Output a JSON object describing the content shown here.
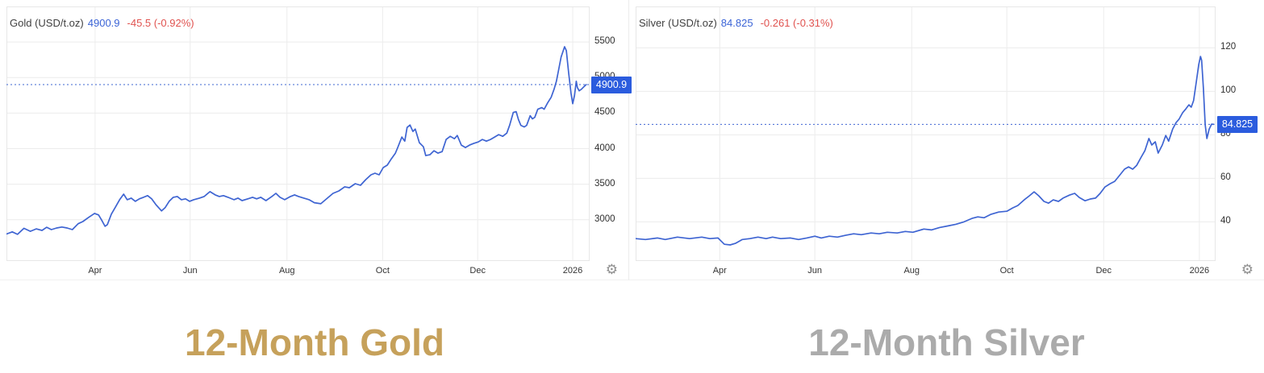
{
  "colors": {
    "line": "#3e64d2",
    "badge": "#2b5cde",
    "grid": "#ececec",
    "plot_border": "#e7e7e7",
    "value_text": "#3a63d6",
    "change_text": "#e0524f",
    "gold_title": "#c6a15b",
    "silver_title": "#ababab"
  },
  "panels": [
    {
      "id": "gold",
      "instrument": "Gold (USD/t.oz)",
      "price": "4900.9",
      "change": "-45.5 (-0.92%)",
      "badge": "4900.9",
      "gear_icon": "settings-gear"
    },
    {
      "id": "silver",
      "instrument": "Silver (USD/t.oz)",
      "price": "84.825",
      "change": "-0.261 (-0.31%)",
      "badge": "84.825",
      "gear_icon": "settings-gear"
    }
  ],
  "captions": {
    "gold": "12-Month Gold",
    "silver": "12-Month Silver"
  },
  "chart_data": [
    {
      "id": "gold",
      "type": "line",
      "title": "Gold (USD/t.oz)",
      "last_price": 4900.9,
      "change": -45.5,
      "change_pct": -0.92,
      "ylim": [
        2420,
        6000
      ],
      "grid": true,
      "legend_position": "top-left",
      "yticks": [
        {
          "v": 3000,
          "label": "3000"
        },
        {
          "v": 3500,
          "label": "3500"
        },
        {
          "v": 4000,
          "label": "4000"
        },
        {
          "v": 4500,
          "label": "4500"
        },
        {
          "v": 5000,
          "label": "5000"
        },
        {
          "v": 5500,
          "label": "5500"
        }
      ],
      "xticks": [
        {
          "f": 0.152,
          "label": "Apr"
        },
        {
          "f": 0.315,
          "label": "Jun"
        },
        {
          "f": 0.481,
          "label": "Aug"
        },
        {
          "f": 0.645,
          "label": "Oct"
        },
        {
          "f": 0.808,
          "label": "Dec"
        },
        {
          "f": 0.971,
          "label": "2026"
        }
      ],
      "points": [
        [
          0.0,
          2800
        ],
        [
          0.01,
          2830
        ],
        [
          0.019,
          2795
        ],
        [
          0.03,
          2880
        ],
        [
          0.041,
          2838
        ],
        [
          0.051,
          2872
        ],
        [
          0.061,
          2850
        ],
        [
          0.069,
          2895
        ],
        [
          0.077,
          2862
        ],
        [
          0.086,
          2885
        ],
        [
          0.095,
          2898
        ],
        [
          0.104,
          2885
        ],
        [
          0.113,
          2862
        ],
        [
          0.123,
          2944
        ],
        [
          0.131,
          2975
        ],
        [
          0.141,
          3034
        ],
        [
          0.151,
          3090
        ],
        [
          0.158,
          3068
        ],
        [
          0.163,
          3000
        ],
        [
          0.169,
          2908
        ],
        [
          0.173,
          2932
        ],
        [
          0.18,
          3080
        ],
        [
          0.187,
          3180
        ],
        [
          0.194,
          3282
        ],
        [
          0.201,
          3360
        ],
        [
          0.207,
          3282
        ],
        [
          0.214,
          3305
        ],
        [
          0.221,
          3260
        ],
        [
          0.228,
          3295
        ],
        [
          0.235,
          3316
        ],
        [
          0.242,
          3340
        ],
        [
          0.249,
          3295
        ],
        [
          0.256,
          3215
        ],
        [
          0.266,
          3125
        ],
        [
          0.272,
          3170
        ],
        [
          0.279,
          3260
        ],
        [
          0.286,
          3316
        ],
        [
          0.293,
          3327
        ],
        [
          0.3,
          3282
        ],
        [
          0.307,
          3295
        ],
        [
          0.314,
          3260
        ],
        [
          0.321,
          3282
        ],
        [
          0.331,
          3305
        ],
        [
          0.339,
          3327
        ],
        [
          0.349,
          3395
        ],
        [
          0.358,
          3350
        ],
        [
          0.365,
          3327
        ],
        [
          0.372,
          3340
        ],
        [
          0.38,
          3316
        ],
        [
          0.39,
          3282
        ],
        [
          0.397,
          3305
        ],
        [
          0.404,
          3270
        ],
        [
          0.414,
          3295
        ],
        [
          0.422,
          3316
        ],
        [
          0.429,
          3295
        ],
        [
          0.436,
          3316
        ],
        [
          0.445,
          3270
        ],
        [
          0.455,
          3327
        ],
        [
          0.462,
          3372
        ],
        [
          0.469,
          3316
        ],
        [
          0.477,
          3282
        ],
        [
          0.487,
          3327
        ],
        [
          0.494,
          3350
        ],
        [
          0.501,
          3327
        ],
        [
          0.51,
          3305
        ],
        [
          0.519,
          3282
        ],
        [
          0.528,
          3240
        ],
        [
          0.539,
          3226
        ],
        [
          0.552,
          3316
        ],
        [
          0.56,
          3372
        ],
        [
          0.57,
          3406
        ],
        [
          0.58,
          3463
        ],
        [
          0.588,
          3451
        ],
        [
          0.598,
          3508
        ],
        [
          0.607,
          3485
        ],
        [
          0.616,
          3564
        ],
        [
          0.625,
          3632
        ],
        [
          0.632,
          3655
        ],
        [
          0.639,
          3632
        ],
        [
          0.646,
          3734
        ],
        [
          0.653,
          3768
        ],
        [
          0.66,
          3858
        ],
        [
          0.667,
          3937
        ],
        [
          0.671,
          4016
        ],
        [
          0.678,
          4163
        ],
        [
          0.683,
          4106
        ],
        [
          0.687,
          4298
        ],
        [
          0.692,
          4332
        ],
        [
          0.697,
          4242
        ],
        [
          0.701,
          4276
        ],
        [
          0.708,
          4084
        ],
        [
          0.715,
          4027
        ],
        [
          0.719,
          3903
        ],
        [
          0.726,
          3914
        ],
        [
          0.733,
          3971
        ],
        [
          0.74,
          3937
        ],
        [
          0.747,
          3959
        ],
        [
          0.754,
          4129
        ],
        [
          0.761,
          4174
        ],
        [
          0.768,
          4140
        ],
        [
          0.773,
          4185
        ],
        [
          0.78,
          4050
        ],
        [
          0.787,
          4016
        ],
        [
          0.794,
          4050
        ],
        [
          0.801,
          4073
        ],
        [
          0.809,
          4095
        ],
        [
          0.816,
          4129
        ],
        [
          0.823,
          4106
        ],
        [
          0.83,
          4129
        ],
        [
          0.837,
          4163
        ],
        [
          0.844,
          4197
        ],
        [
          0.851,
          4174
        ],
        [
          0.858,
          4219
        ],
        [
          0.863,
          4332
        ],
        [
          0.869,
          4509
        ],
        [
          0.874,
          4520
        ],
        [
          0.878,
          4407
        ],
        [
          0.882,
          4328
        ],
        [
          0.888,
          4305
        ],
        [
          0.892,
          4328
        ],
        [
          0.898,
          4464
        ],
        [
          0.902,
          4419
        ],
        [
          0.906,
          4441
        ],
        [
          0.911,
          4554
        ],
        [
          0.918,
          4577
        ],
        [
          0.922,
          4554
        ],
        [
          0.928,
          4644
        ],
        [
          0.934,
          4723
        ],
        [
          0.939,
          4836
        ],
        [
          0.943,
          4949
        ],
        [
          0.947,
          5118
        ],
        [
          0.951,
          5287
        ],
        [
          0.957,
          5434
        ],
        [
          0.96,
          5378
        ],
        [
          0.964,
          5062
        ],
        [
          0.968,
          4780
        ],
        [
          0.971,
          4633
        ],
        [
          0.974,
          4746
        ],
        [
          0.977,
          4949
        ],
        [
          0.979,
          4859
        ],
        [
          0.982,
          4814
        ],
        [
          0.986,
          4836
        ],
        [
          0.99,
          4870
        ],
        [
          0.994,
          4901
        ]
      ]
    },
    {
      "id": "silver",
      "type": "line",
      "title": "Silver (USD/t.oz)",
      "last_price": 84.825,
      "change": -0.261,
      "change_pct": -0.31,
      "ylim": [
        22,
        139
      ],
      "grid": true,
      "legend_position": "top-left",
      "yticks": [
        {
          "v": 40,
          "label": "40"
        },
        {
          "v": 60,
          "label": "60"
        },
        {
          "v": 80,
          "label": "80"
        },
        {
          "v": 100,
          "label": "100"
        },
        {
          "v": 120,
          "label": "120"
        }
      ],
      "xticks": [
        {
          "f": 0.145,
          "label": "Apr"
        },
        {
          "f": 0.309,
          "label": "Jun"
        },
        {
          "f": 0.476,
          "label": "Aug"
        },
        {
          "f": 0.64,
          "label": "Oct"
        },
        {
          "f": 0.807,
          "label": "Dec"
        },
        {
          "f": 0.972,
          "label": "2026"
        }
      ],
      "points": [
        [
          0.0,
          32.3
        ],
        [
          0.017,
          31.9
        ],
        [
          0.038,
          32.6
        ],
        [
          0.051,
          31.9
        ],
        [
          0.072,
          33.0
        ],
        [
          0.093,
          32.3
        ],
        [
          0.114,
          33.0
        ],
        [
          0.128,
          32.3
        ],
        [
          0.142,
          32.6
        ],
        [
          0.153,
          29.7
        ],
        [
          0.163,
          29.4
        ],
        [
          0.172,
          30.1
        ],
        [
          0.184,
          31.9
        ],
        [
          0.197,
          32.3
        ],
        [
          0.211,
          33.0
        ],
        [
          0.225,
          32.3
        ],
        [
          0.236,
          33.0
        ],
        [
          0.25,
          32.3
        ],
        [
          0.267,
          32.6
        ],
        [
          0.281,
          31.9
        ],
        [
          0.295,
          32.6
        ],
        [
          0.309,
          33.4
        ],
        [
          0.32,
          32.6
        ],
        [
          0.334,
          33.4
        ],
        [
          0.348,
          33.0
        ],
        [
          0.362,
          33.8
        ],
        [
          0.376,
          34.5
        ],
        [
          0.389,
          34.1
        ],
        [
          0.406,
          34.9
        ],
        [
          0.42,
          34.5
        ],
        [
          0.434,
          35.2
        ],
        [
          0.451,
          34.9
        ],
        [
          0.465,
          35.6
        ],
        [
          0.478,
          35.2
        ],
        [
          0.497,
          36.7
        ],
        [
          0.51,
          36.3
        ],
        [
          0.524,
          37.4
        ],
        [
          0.538,
          38.1
        ],
        [
          0.552,
          38.9
        ],
        [
          0.566,
          40.0
        ],
        [
          0.58,
          41.6
        ],
        [
          0.59,
          42.3
        ],
        [
          0.601,
          41.9
        ],
        [
          0.612,
          43.4
        ],
        [
          0.626,
          44.5
        ],
        [
          0.64,
          44.9
        ],
        [
          0.65,
          46.4
        ],
        [
          0.659,
          47.5
        ],
        [
          0.67,
          50.1
        ],
        [
          0.679,
          52.0
        ],
        [
          0.687,
          53.8
        ],
        [
          0.695,
          52.0
        ],
        [
          0.704,
          49.4
        ],
        [
          0.712,
          48.6
        ],
        [
          0.72,
          50.1
        ],
        [
          0.729,
          49.4
        ],
        [
          0.737,
          50.9
        ],
        [
          0.748,
          52.3
        ],
        [
          0.757,
          53.1
        ],
        [
          0.765,
          51.2
        ],
        [
          0.775,
          49.7
        ],
        [
          0.784,
          50.5
        ],
        [
          0.793,
          50.9
        ],
        [
          0.801,
          53.1
        ],
        [
          0.809,
          56.0
        ],
        [
          0.818,
          57.5
        ],
        [
          0.826,
          58.6
        ],
        [
          0.834,
          61.2
        ],
        [
          0.843,
          64.2
        ],
        [
          0.85,
          65.3
        ],
        [
          0.857,
          64.2
        ],
        [
          0.864,
          66.0
        ],
        [
          0.871,
          69.4
        ],
        [
          0.878,
          72.7
        ],
        [
          0.885,
          78.3
        ],
        [
          0.89,
          75.3
        ],
        [
          0.896,
          76.8
        ],
        [
          0.901,
          71.6
        ],
        [
          0.908,
          75.3
        ],
        [
          0.914,
          79.7
        ],
        [
          0.919,
          77.1
        ],
        [
          0.926,
          82.7
        ],
        [
          0.932,
          85.7
        ],
        [
          0.937,
          87.2
        ],
        [
          0.943,
          90.1
        ],
        [
          0.949,
          92.0
        ],
        [
          0.954,
          93.8
        ],
        [
          0.958,
          92.7
        ],
        [
          0.962,
          95.7
        ],
        [
          0.967,
          104.9
        ],
        [
          0.971,
          112.3
        ],
        [
          0.974,
          116.0
        ],
        [
          0.976,
          114.2
        ],
        [
          0.979,
          101.2
        ],
        [
          0.982,
          84.6
        ],
        [
          0.985,
          78.3
        ],
        [
          0.989,
          82.7
        ],
        [
          0.993,
          84.9
        ],
        [
          0.997,
          84.825
        ]
      ]
    }
  ]
}
